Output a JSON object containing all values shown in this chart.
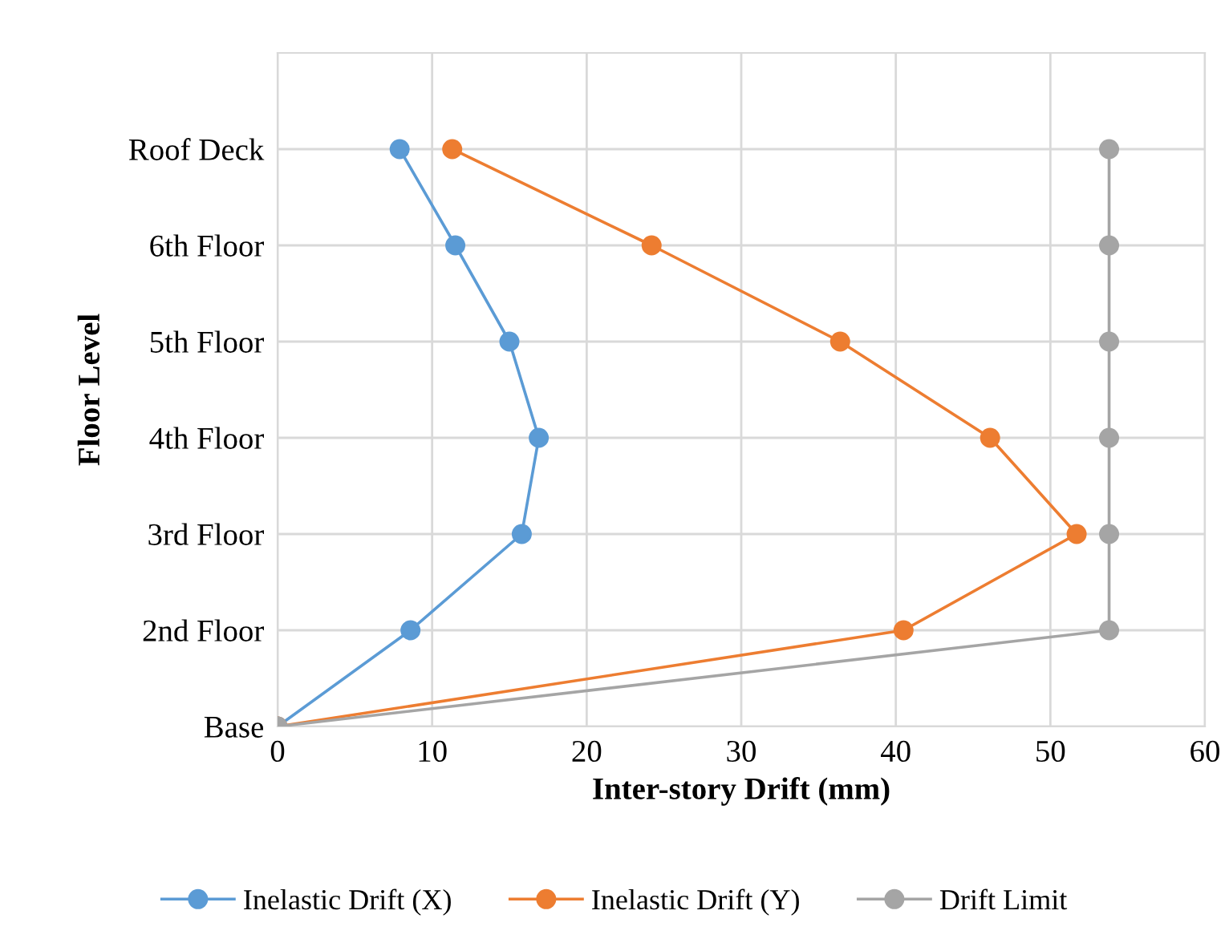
{
  "chart_data": {
    "type": "line",
    "orientation": "horizontal",
    "categories": [
      "Roof Deck",
      "6th Floor",
      "5th Floor",
      "4th Floor",
      "3rd Floor",
      "2nd Floor",
      "Base"
    ],
    "series": [
      {
        "name": "Inelastic Drift (X)",
        "color": "#5b9bd5",
        "values": [
          7.9,
          11.5,
          15.0,
          16.9,
          15.8,
          8.6,
          0
        ]
      },
      {
        "name": "Inelastic Drift (Y)",
        "color": "#ed7d31",
        "values": [
          11.3,
          24.2,
          36.4,
          46.1,
          51.7,
          40.5,
          0
        ]
      },
      {
        "name": "Drift Limit",
        "color": "#a5a5a5",
        "values": [
          53.8,
          53.8,
          53.8,
          53.8,
          53.8,
          53.8,
          0
        ]
      }
    ],
    "xlabel": "Inter-story Drift (mm)",
    "ylabel": "Floor Level",
    "xlim": [
      0,
      60
    ],
    "xticks": [
      0,
      10,
      20,
      30,
      40,
      50,
      60
    ],
    "grid": true,
    "legend": "bottom",
    "marker": "circle",
    "line_style": "solid"
  }
}
